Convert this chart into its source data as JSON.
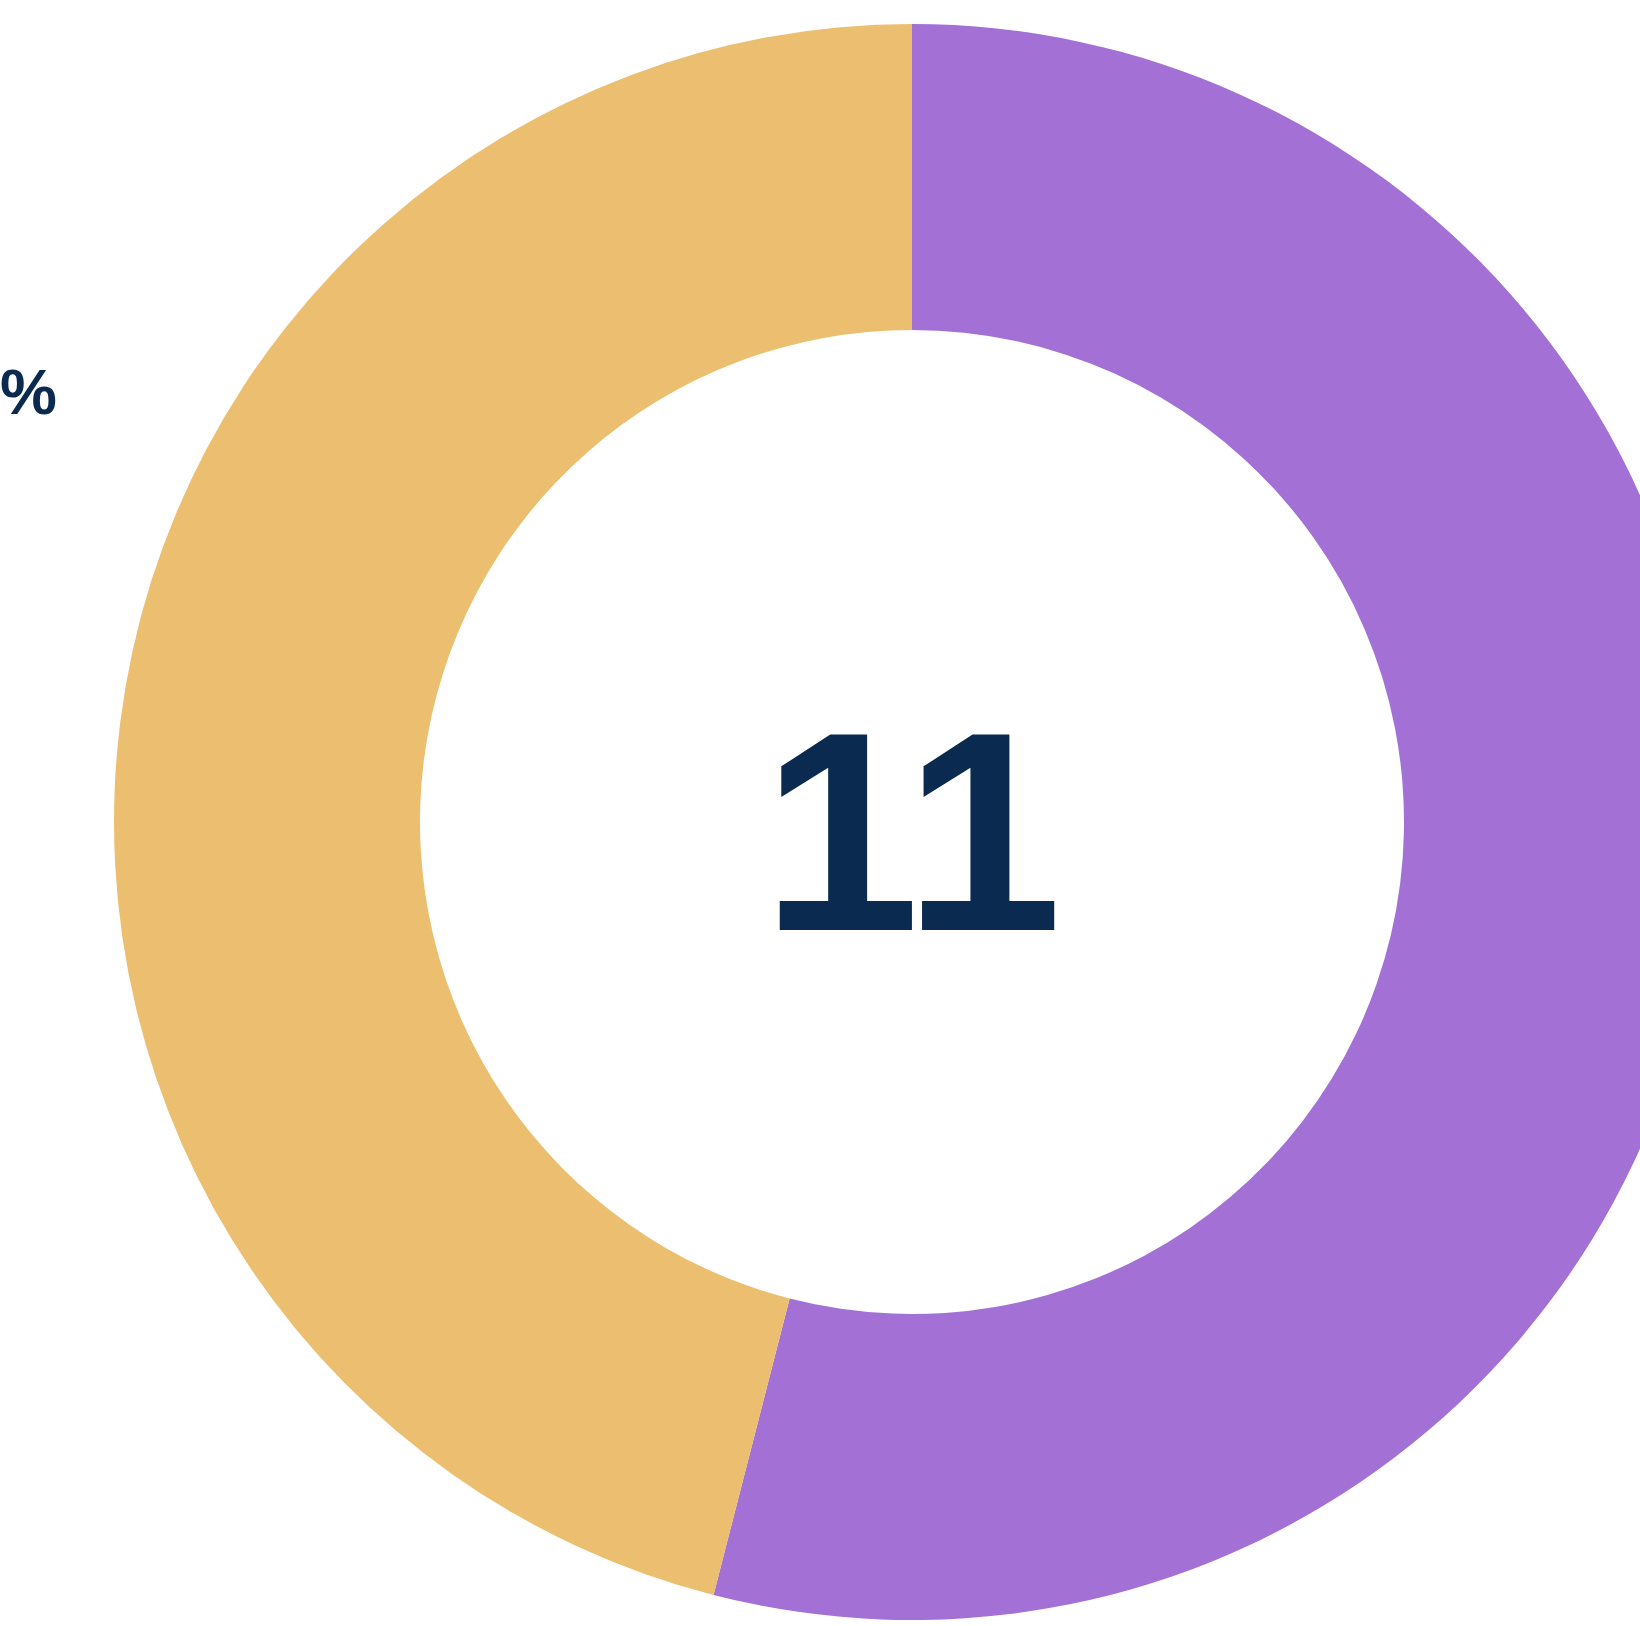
{
  "chart_data": {
    "type": "donut",
    "categories": [
      null,
      null
    ],
    "values": [
      54,
      46
    ],
    "colors": [
      "#a370d6",
      "#ecbf70"
    ],
    "annotations": [
      "11",
      "%"
    ]
  }
}
